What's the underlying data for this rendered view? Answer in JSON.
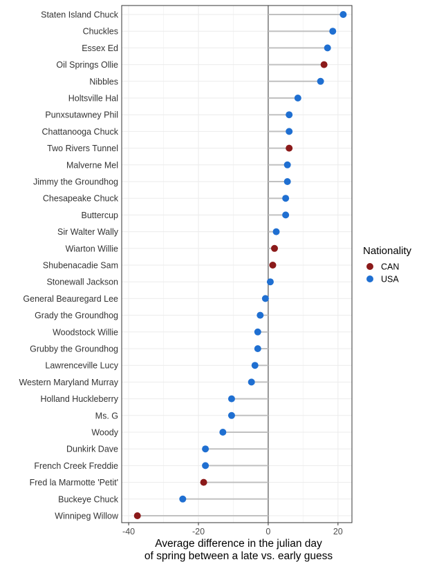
{
  "chart_data": {
    "type": "scatter",
    "subtype": "lollipop",
    "title": "",
    "xlabel": [
      "Average difference in the julian day",
      "of spring between a late vs. early guess"
    ],
    "ylabel": "",
    "xlim": [
      -42,
      24
    ],
    "xticks": [
      -40,
      -20,
      0,
      20
    ],
    "grid": true,
    "legend": {
      "title": "Nationality",
      "position": "right",
      "entries": [
        {
          "name": "CAN",
          "color": "#8b1a1a"
        },
        {
          "name": "USA",
          "color": "#1f6fd1"
        }
      ]
    },
    "segment_color": "#c0c0c0",
    "points": [
      {
        "name": "Staten Island Chuck",
        "value": 21.5,
        "nationality": "USA"
      },
      {
        "name": "Chuckles",
        "value": 18.5,
        "nationality": "USA"
      },
      {
        "name": "Essex Ed",
        "value": 17,
        "nationality": "USA"
      },
      {
        "name": "Oil Springs Ollie",
        "value": 16,
        "nationality": "CAN"
      },
      {
        "name": "Nibbles",
        "value": 15,
        "nationality": "USA"
      },
      {
        "name": "Holtsville Hal",
        "value": 8.5,
        "nationality": "USA"
      },
      {
        "name": "Punxsutawney Phil",
        "value": 6,
        "nationality": "USA"
      },
      {
        "name": "Chattanooga Chuck",
        "value": 6,
        "nationality": "USA"
      },
      {
        "name": "Two Rivers Tunnel",
        "value": 6,
        "nationality": "CAN"
      },
      {
        "name": "Malverne Mel",
        "value": 5.5,
        "nationality": "USA"
      },
      {
        "name": "Jimmy the Groundhog",
        "value": 5.5,
        "nationality": "USA"
      },
      {
        "name": "Chesapeake Chuck",
        "value": 5,
        "nationality": "USA"
      },
      {
        "name": "Buttercup",
        "value": 5,
        "nationality": "USA"
      },
      {
        "name": "Sir Walter Wally",
        "value": 2.3,
        "nationality": "USA"
      },
      {
        "name": "Wiarton Willie",
        "value": 1.8,
        "nationality": "CAN"
      },
      {
        "name": "Shubenacadie Sam",
        "value": 1.3,
        "nationality": "CAN"
      },
      {
        "name": "Stonewall Jackson",
        "value": 0.6,
        "nationality": "USA"
      },
      {
        "name": "General Beauregard Lee",
        "value": -0.8,
        "nationality": "USA"
      },
      {
        "name": "Grady the Groundhog",
        "value": -2.3,
        "nationality": "USA"
      },
      {
        "name": "Woodstock Willie",
        "value": -3,
        "nationality": "USA"
      },
      {
        "name": "Grubby the Groundhog",
        "value": -3,
        "nationality": "USA"
      },
      {
        "name": "Lawrenceville Lucy",
        "value": -3.8,
        "nationality": "USA"
      },
      {
        "name": "Western Maryland Murray",
        "value": -4.8,
        "nationality": "USA"
      },
      {
        "name": "Holland Huckleberry",
        "value": -10.5,
        "nationality": "USA"
      },
      {
        "name": "Ms. G",
        "value": -10.5,
        "nationality": "USA"
      },
      {
        "name": "Woody",
        "value": -13,
        "nationality": "USA"
      },
      {
        "name": "Dunkirk Dave",
        "value": -18,
        "nationality": "USA"
      },
      {
        "name": "French Creek Freddie",
        "value": -18,
        "nationality": "USA"
      },
      {
        "name": "Fred la Marmotte 'Petit'",
        "value": -18.5,
        "nationality": "CAN"
      },
      {
        "name": "Buckeye Chuck",
        "value": -24.5,
        "nationality": "USA"
      },
      {
        "name": "Winnipeg Willow",
        "value": -37.5,
        "nationality": "CAN"
      }
    ]
  }
}
